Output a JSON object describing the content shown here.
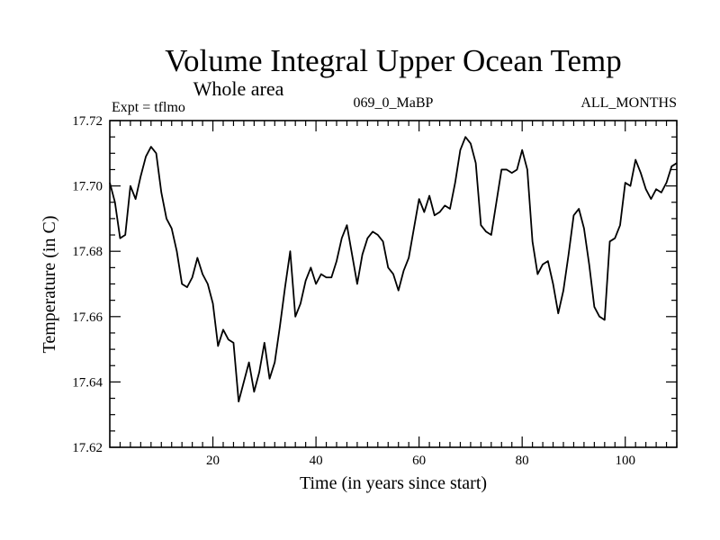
{
  "chart_data": {
    "type": "line",
    "title": "Volume Integral Upper Ocean Temp",
    "subtitle": "Whole area",
    "left_label": "Expt = tflmo",
    "center_label": "069_0_MaBP",
    "right_label": "ALL_MONTHS",
    "xlabel": "Time (in years since start)",
    "ylabel": "Temperature (in C)",
    "xlim": [
      0,
      110
    ],
    "ylim": [
      17.62,
      17.72
    ],
    "xticks": [
      20,
      40,
      60,
      80,
      100
    ],
    "yticks": [
      17.62,
      17.64,
      17.66,
      17.68,
      17.7,
      17.72
    ],
    "xtick_labels": [
      "20",
      "40",
      "60",
      "80",
      "100"
    ],
    "ytick_labels": [
      "17.62",
      "17.64",
      "17.66",
      "17.68",
      "17.70",
      "17.72"
    ],
    "grid": false,
    "series": [
      {
        "name": "tflmo",
        "color": "#000000",
        "x": [
          0,
          1,
          2,
          3,
          4,
          5,
          6,
          7,
          8,
          9,
          10,
          11,
          12,
          13,
          14,
          15,
          16,
          17,
          18,
          19,
          20,
          21,
          22,
          23,
          24,
          25,
          26,
          27,
          28,
          29,
          30,
          31,
          32,
          33,
          34,
          35,
          36,
          37,
          38,
          39,
          40,
          41,
          42,
          43,
          44,
          45,
          46,
          47,
          48,
          49,
          50,
          51,
          52,
          53,
          54,
          55,
          56,
          57,
          58,
          59,
          60,
          61,
          62,
          63,
          64,
          65,
          66,
          67,
          68,
          69,
          70,
          71,
          72,
          73,
          74,
          75,
          76,
          77,
          78,
          79,
          80,
          81,
          82,
          83,
          84,
          85,
          86,
          87,
          88,
          89,
          90,
          91,
          92,
          93,
          94,
          95,
          96,
          97,
          98,
          99,
          100,
          101,
          102,
          103,
          104,
          105,
          106,
          107,
          108,
          109,
          110
        ],
        "y": [
          17.701,
          17.695,
          17.684,
          17.685,
          17.7,
          17.696,
          17.703,
          17.709,
          17.712,
          17.71,
          17.698,
          17.69,
          17.687,
          17.68,
          17.67,
          17.669,
          17.672,
          17.678,
          17.673,
          17.67,
          17.664,
          17.651,
          17.656,
          17.653,
          17.652,
          17.634,
          17.64,
          17.646,
          17.637,
          17.643,
          17.652,
          17.641,
          17.646,
          17.657,
          17.669,
          17.68,
          17.66,
          17.664,
          17.671,
          17.675,
          17.67,
          17.673,
          17.672,
          17.672,
          17.677,
          17.684,
          17.688,
          17.679,
          17.67,
          17.679,
          17.684,
          17.686,
          17.685,
          17.683,
          17.675,
          17.673,
          17.668,
          17.674,
          17.678,
          17.687,
          17.696,
          17.692,
          17.697,
          17.691,
          17.692,
          17.694,
          17.693,
          17.701,
          17.711,
          17.715,
          17.713,
          17.707,
          17.688,
          17.686,
          17.685,
          17.695,
          17.705,
          17.705,
          17.704,
          17.705,
          17.711,
          17.705,
          17.683,
          17.673,
          17.676,
          17.677,
          17.67,
          17.661,
          17.668,
          17.679,
          17.691,
          17.693,
          17.687,
          17.676,
          17.663,
          17.66,
          17.659,
          17.683,
          17.684,
          17.688,
          17.701,
          17.7,
          17.708,
          17.704,
          17.699,
          17.696,
          17.699,
          17.698,
          17.701,
          17.706,
          17.707
        ]
      }
    ]
  }
}
